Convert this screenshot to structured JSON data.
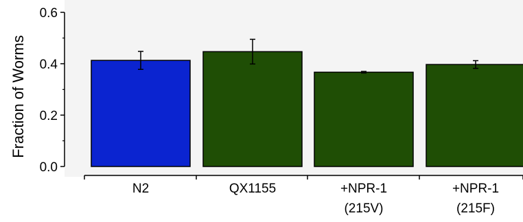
{
  "chart_data": {
    "type": "bar",
    "categories": [
      {
        "line1": "N2",
        "line2": ""
      },
      {
        "line1": "QX1155",
        "line2": ""
      },
      {
        "line1": "+NPR-1",
        "line2": "(215V)"
      },
      {
        "line1": "+NPR-1",
        "line2": "(215F)"
      }
    ],
    "values": [
      0.413,
      0.447,
      0.367,
      0.397
    ],
    "errors": [
      0.035,
      0.048,
      0.003,
      0.015
    ],
    "colors": [
      "#0b24d0",
      "#1f4e05",
      "#1f4e05",
      "#1f4e05"
    ],
    "ylabel": "Fraction of Worms",
    "ylim": [
      0,
      0.6
    ],
    "yticks": [
      "0.0",
      "0.2",
      "0.4",
      "0.6"
    ],
    "ytick_values": [
      0,
      0.2,
      0.4,
      0.6
    ],
    "grid": false
  }
}
